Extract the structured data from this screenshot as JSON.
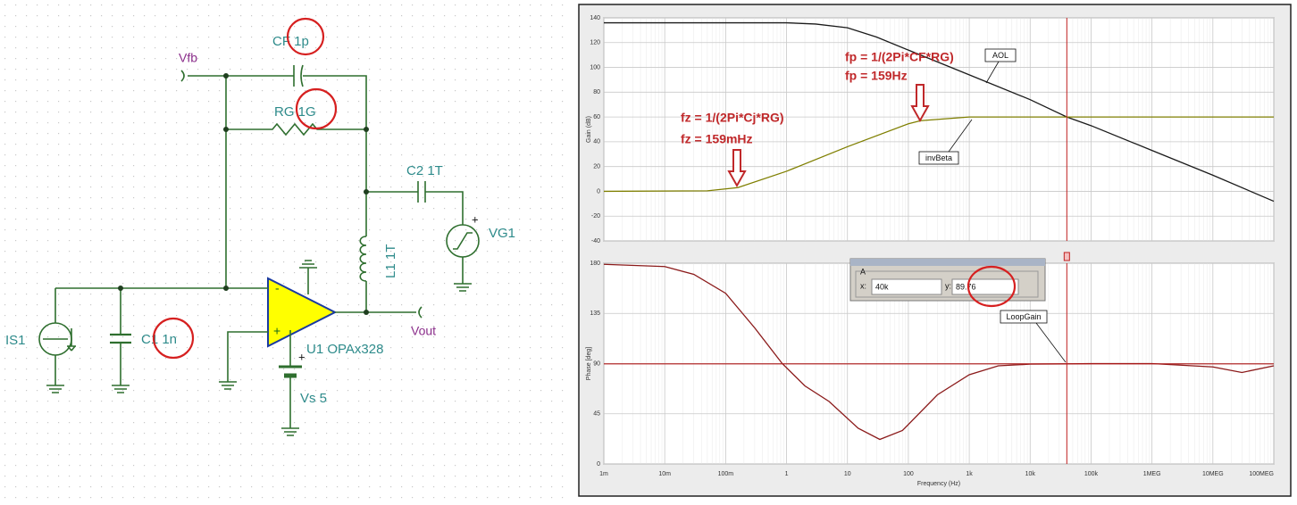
{
  "schematic": {
    "vfb": "Vfb",
    "cf": "CF 1p",
    "rg": "RG 1G",
    "c2": "C2 1T",
    "vg1": "VG1",
    "vg1_plus": "+",
    "l1": "L1 1T",
    "u1": "U1 OPAx328",
    "vs": "Vs 5",
    "vs_plus": "+",
    "vout": "Vout",
    "is1": "IS1",
    "c1": "C1 1n"
  },
  "chart_data": [
    {
      "type": "line",
      "y_label": "Gain (dB)",
      "log_x": true,
      "grid": true,
      "xlim": [
        0.001,
        100000000
      ],
      "xticks": [
        0.001,
        0.01,
        0.1,
        1,
        10,
        100,
        1000,
        10000,
        100000,
        1000000,
        10000000,
        100000000
      ],
      "ylim": [
        -40,
        140
      ],
      "yticks": [
        -40,
        -20,
        0,
        20,
        40,
        60,
        80,
        100,
        120,
        140
      ],
      "cursor": {
        "x": 40000
      },
      "annotations": [
        "fz = 1/(2Pi*Cj*RG)",
        "fz = 159mHz",
        "fp = 1/(2Pi*CF*RG)",
        "fp = 159Hz"
      ],
      "series": [
        {
          "name": "AOL",
          "color": "#1a1a1a",
          "x": [
            0.001,
            1,
            3,
            10,
            30,
            100,
            1000,
            10000,
            40000,
            100000,
            1000000,
            10000000,
            100000000
          ],
          "values": [
            136,
            136,
            135,
            132,
            124.5,
            114,
            94,
            74,
            60,
            53,
            33,
            13,
            -8
          ]
        },
        {
          "name": "invBeta",
          "color": "#7f7f00",
          "x": [
            0.001,
            0.05,
            0.159,
            1,
            10,
            100,
            159,
            1000,
            100000000
          ],
          "values": [
            0,
            0.4,
            3,
            16.2,
            36,
            54.5,
            57,
            60,
            60
          ]
        }
      ]
    },
    {
      "type": "line",
      "x_label": "Frequency (Hz)",
      "y_label": "Phase [deg]",
      "log_x": true,
      "grid": true,
      "xlim": [
        0.001,
        100000000
      ],
      "xticks": [
        {
          "value": 0.001,
          "label": "1m"
        },
        {
          "value": 0.01,
          "label": "10m"
        },
        {
          "value": 0.1,
          "label": "100m"
        },
        1,
        10,
        100,
        {
          "value": 1000,
          "label": "1k"
        },
        {
          "value": 10000,
          "label": "10k"
        },
        {
          "value": 100000,
          "label": "100k"
        },
        {
          "value": 1000000,
          "label": "1MEG"
        },
        {
          "value": 10000000,
          "label": "10MEG"
        },
        {
          "value": 100000000,
          "label": "100MEG"
        }
      ],
      "ylim": [
        0,
        180
      ],
      "yticks": [
        0,
        45,
        90,
        135,
        180
      ],
      "cursor": {
        "title": "A",
        "x_prefix": "x:",
        "x": {
          "value": 40000,
          "label": "40k"
        },
        "y_prefix": "y:",
        "y": 89.76
      },
      "series": [
        {
          "name": "LoopGain",
          "color": "#8b1a1a",
          "x": [
            0.001,
            0.01,
            0.03,
            0.1,
            0.3,
            0.85,
            2,
            5,
            15,
            34,
            80,
            300,
            1000,
            3000,
            10000,
            40000,
            100000,
            1000000,
            10000000,
            30000000,
            100000000
          ],
          "values": [
            179,
            177,
            170,
            153,
            122,
            90,
            70,
            56,
            32,
            22,
            30,
            62,
            80,
            88,
            89.5,
            89.76,
            90,
            90,
            87,
            82,
            88
          ]
        }
      ]
    }
  ]
}
